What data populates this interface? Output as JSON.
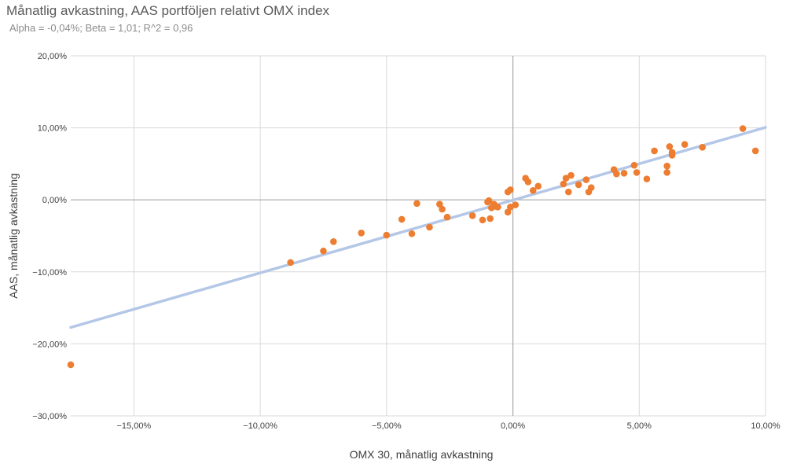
{
  "chart_data": {
    "type": "scatter",
    "title": "Månatlig avkastning, AAS portföljen relativt OMX index",
    "subtitle": "Alpha = -0,04%; Beta = 1,01; R^2 = 0,96",
    "xlabel": "OMX 30, månatlig avkastning",
    "ylabel": "AAS, månatlig avkastning",
    "xlim": [
      -17.5,
      10
    ],
    "ylim": [
      -30,
      20
    ],
    "x_ticks": [
      -15,
      -10,
      -5,
      0,
      5,
      10
    ],
    "y_ticks": [
      -30,
      -20,
      -10,
      0,
      10,
      20
    ],
    "x_tick_labels": [
      "−15,00%",
      "−10,00%",
      "−5,00%",
      "0,00%",
      "5,00%",
      "10,00%"
    ],
    "y_tick_labels": [
      "−30,00%",
      "−20,00%",
      "−10,00%",
      "0,00%",
      "10,00%",
      "20,00%"
    ],
    "grid": true,
    "trendline": {
      "slope": 1.01,
      "intercept": -0.04,
      "x_range": [
        -17.5,
        10
      ],
      "color": "#b4c7e7"
    },
    "marker_color": "#ed7d31",
    "points": [
      [
        -17.5,
        -22.9
      ],
      [
        -8.8,
        -8.7
      ],
      [
        -7.5,
        -7.1
      ],
      [
        -7.1,
        -5.8
      ],
      [
        -6.0,
        -4.6
      ],
      [
        -5.0,
        -4.9
      ],
      [
        -4.4,
        -2.7
      ],
      [
        -4.0,
        -4.7
      ],
      [
        -3.8,
        -0.5
      ],
      [
        -3.3,
        -3.8
      ],
      [
        -2.9,
        -0.6
      ],
      [
        -2.8,
        -1.3
      ],
      [
        -2.6,
        -2.4
      ],
      [
        -1.6,
        -2.2
      ],
      [
        -1.2,
        -2.8
      ],
      [
        -1.0,
        -0.3
      ],
      [
        -0.95,
        -0.1
      ],
      [
        -0.9,
        -2.6
      ],
      [
        -0.85,
        -1.1
      ],
      [
        -0.75,
        -0.6
      ],
      [
        -0.7,
        -0.9
      ],
      [
        -0.6,
        -1.0
      ],
      [
        -0.2,
        -1.7
      ],
      [
        -0.2,
        1.1
      ],
      [
        -0.1,
        1.4
      ],
      [
        -0.1,
        -1.0
      ],
      [
        0.1,
        -0.7
      ],
      [
        0.5,
        3.0
      ],
      [
        0.6,
        2.5
      ],
      [
        0.8,
        1.3
      ],
      [
        1.0,
        1.9
      ],
      [
        2.0,
        2.2
      ],
      [
        2.1,
        3.0
      ],
      [
        2.2,
        1.1
      ],
      [
        2.3,
        3.4
      ],
      [
        2.6,
        2.1
      ],
      [
        2.9,
        2.8
      ],
      [
        3.0,
        1.1
      ],
      [
        3.1,
        1.7
      ],
      [
        4.0,
        4.2
      ],
      [
        4.1,
        3.6
      ],
      [
        4.4,
        3.7
      ],
      [
        4.8,
        4.8
      ],
      [
        4.9,
        3.8
      ],
      [
        5.3,
        2.9
      ],
      [
        5.6,
        6.8
      ],
      [
        6.1,
        4.7
      ],
      [
        6.1,
        3.8
      ],
      [
        6.2,
        7.4
      ],
      [
        6.3,
        6.6
      ],
      [
        6.3,
        6.2
      ],
      [
        6.8,
        7.7
      ],
      [
        7.5,
        7.3
      ],
      [
        9.1,
        9.9
      ],
      [
        9.6,
        6.8
      ]
    ]
  }
}
